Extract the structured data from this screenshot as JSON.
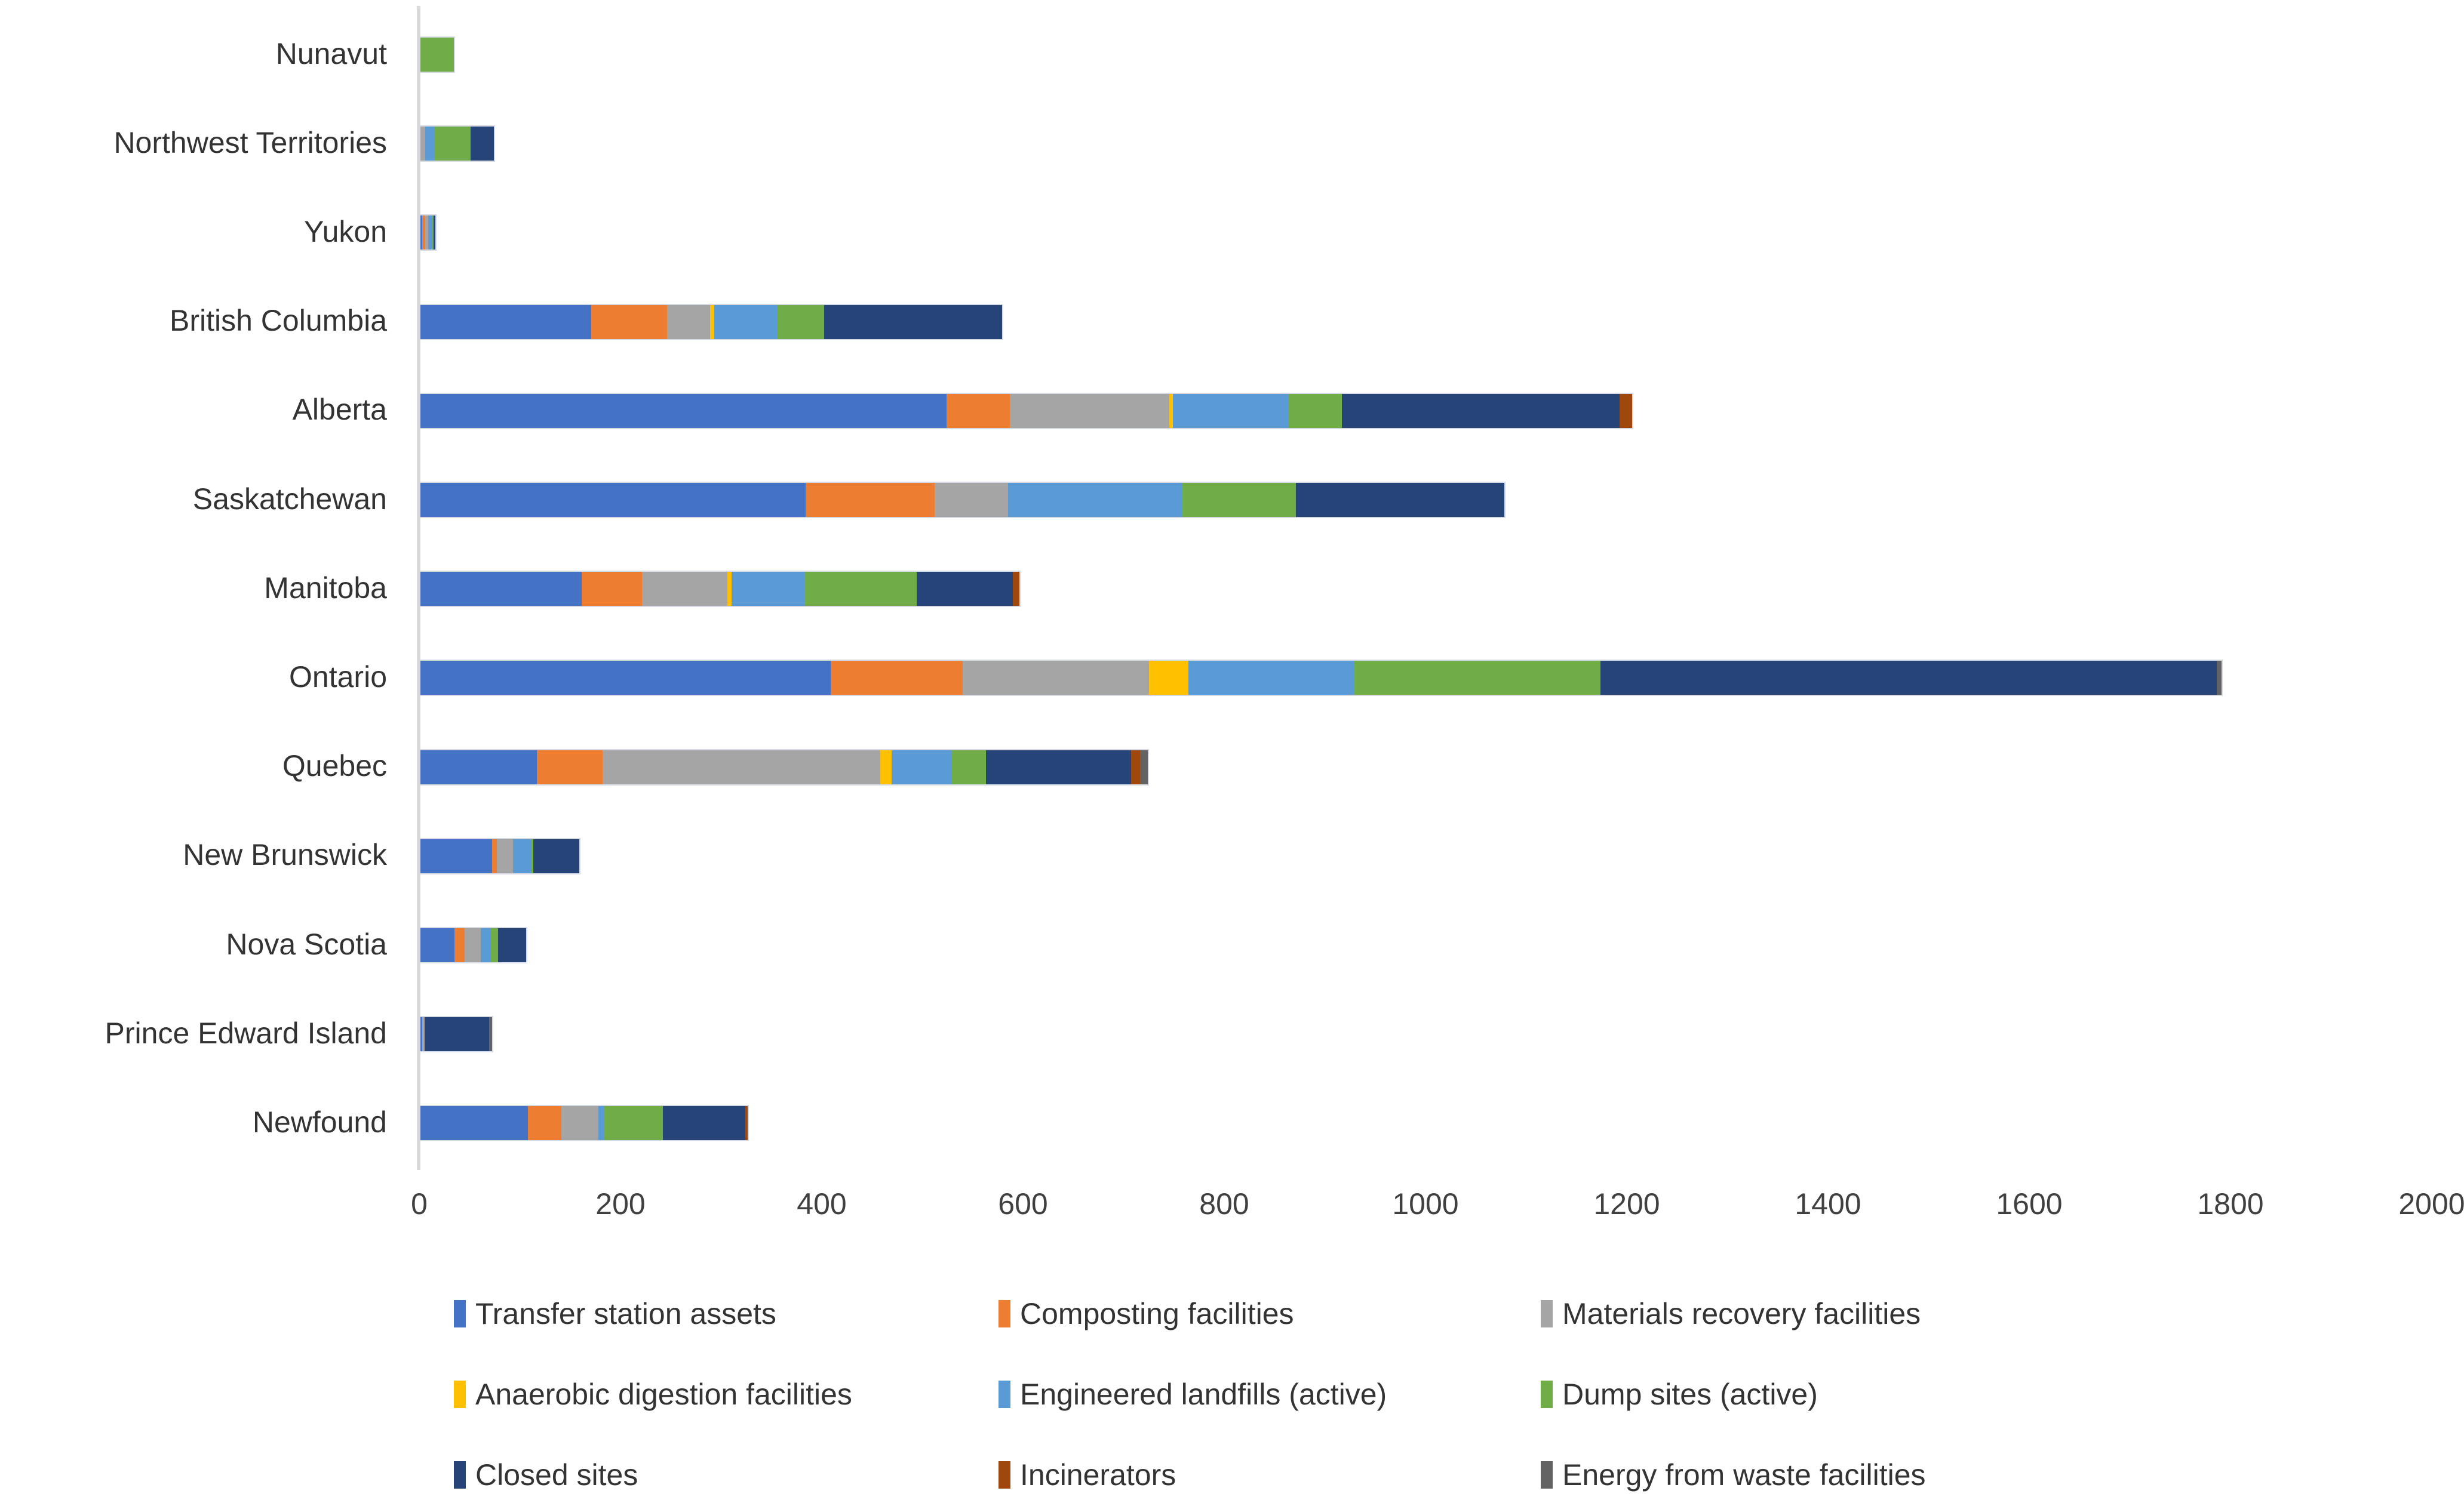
{
  "chart_data": {
    "type": "bar",
    "orientation": "horizontal",
    "stacked": true,
    "title": "",
    "xlabel": "",
    "ylabel": "",
    "grid": false,
    "legend_position": "bottom",
    "xlim": [
      0,
      2000
    ],
    "x_ticks": [
      0,
      200,
      400,
      600,
      800,
      1000,
      1200,
      1400,
      1600,
      1800,
      2000
    ],
    "categories": [
      "Nunavut",
      "Northwest Territories",
      "Yukon",
      "British Columbia",
      "Alberta",
      "Saskatchewan",
      "Manitoba",
      "Ontario",
      "Quebec",
      "New Brunswick",
      "Nova Scotia",
      "Prince Edward Island",
      "Newfound"
    ],
    "series": [
      {
        "name": "Transfer station assets",
        "color": "#4472C4",
        "values": [
          0,
          0,
          2,
          170,
          523,
          383,
          160,
          408,
          116,
          71,
          34,
          2,
          107
        ]
      },
      {
        "name": "Composting facilities",
        "color": "#ED7D31",
        "values": [
          0,
          0,
          3,
          75,
          63,
          128,
          60,
          131,
          65,
          5,
          10,
          0,
          33
        ]
      },
      {
        "name": "Materials recovery facilities",
        "color": "#A5A5A5",
        "values": [
          0,
          5,
          3,
          43,
          158,
          73,
          85,
          185,
          276,
          16,
          16,
          2,
          37
        ]
      },
      {
        "name": "Anaerobic digestion facilities",
        "color": "#FFC000",
        "values": [
          0,
          0,
          0,
          4,
          4,
          0,
          4,
          39,
          11,
          0,
          0,
          0,
          0
        ]
      },
      {
        "name": "Engineered landfills (active)",
        "color": "#5B9BD5",
        "values": [
          0,
          9,
          3,
          63,
          115,
          173,
          73,
          165,
          60,
          18,
          10,
          0,
          5
        ]
      },
      {
        "name": "Dump sites (active)",
        "color": "#70AD47",
        "values": [
          33,
          36,
          2,
          46,
          53,
          113,
          111,
          245,
          34,
          2,
          7,
          0,
          59
        ]
      },
      {
        "name": "Closed sites",
        "color": "#264478",
        "values": [
          0,
          23,
          2,
          177,
          276,
          207,
          96,
          612,
          144,
          46,
          28,
          64,
          82
        ]
      },
      {
        "name": "Incinerators",
        "color": "#9E480E",
        "values": [
          0,
          0,
          0,
          0,
          12,
          0,
          6,
          0,
          9,
          0,
          0,
          0,
          2
        ]
      },
      {
        "name": "Energy from waste facilities",
        "color": "#636363",
        "values": [
          0,
          0,
          0,
          0,
          0,
          0,
          0,
          5,
          8,
          0,
          0,
          3,
          0
        ]
      }
    ],
    "legend_rows": [
      [
        0,
        1,
        2
      ],
      [
        3,
        4,
        5
      ],
      [
        6,
        7,
        8
      ]
    ]
  },
  "colors": {
    "background": "#FFFFFF",
    "axis_line": "#D9D9D9",
    "tick_text": "#404040",
    "label_text": "#333333",
    "bar_border": "#D5D9E2"
  }
}
